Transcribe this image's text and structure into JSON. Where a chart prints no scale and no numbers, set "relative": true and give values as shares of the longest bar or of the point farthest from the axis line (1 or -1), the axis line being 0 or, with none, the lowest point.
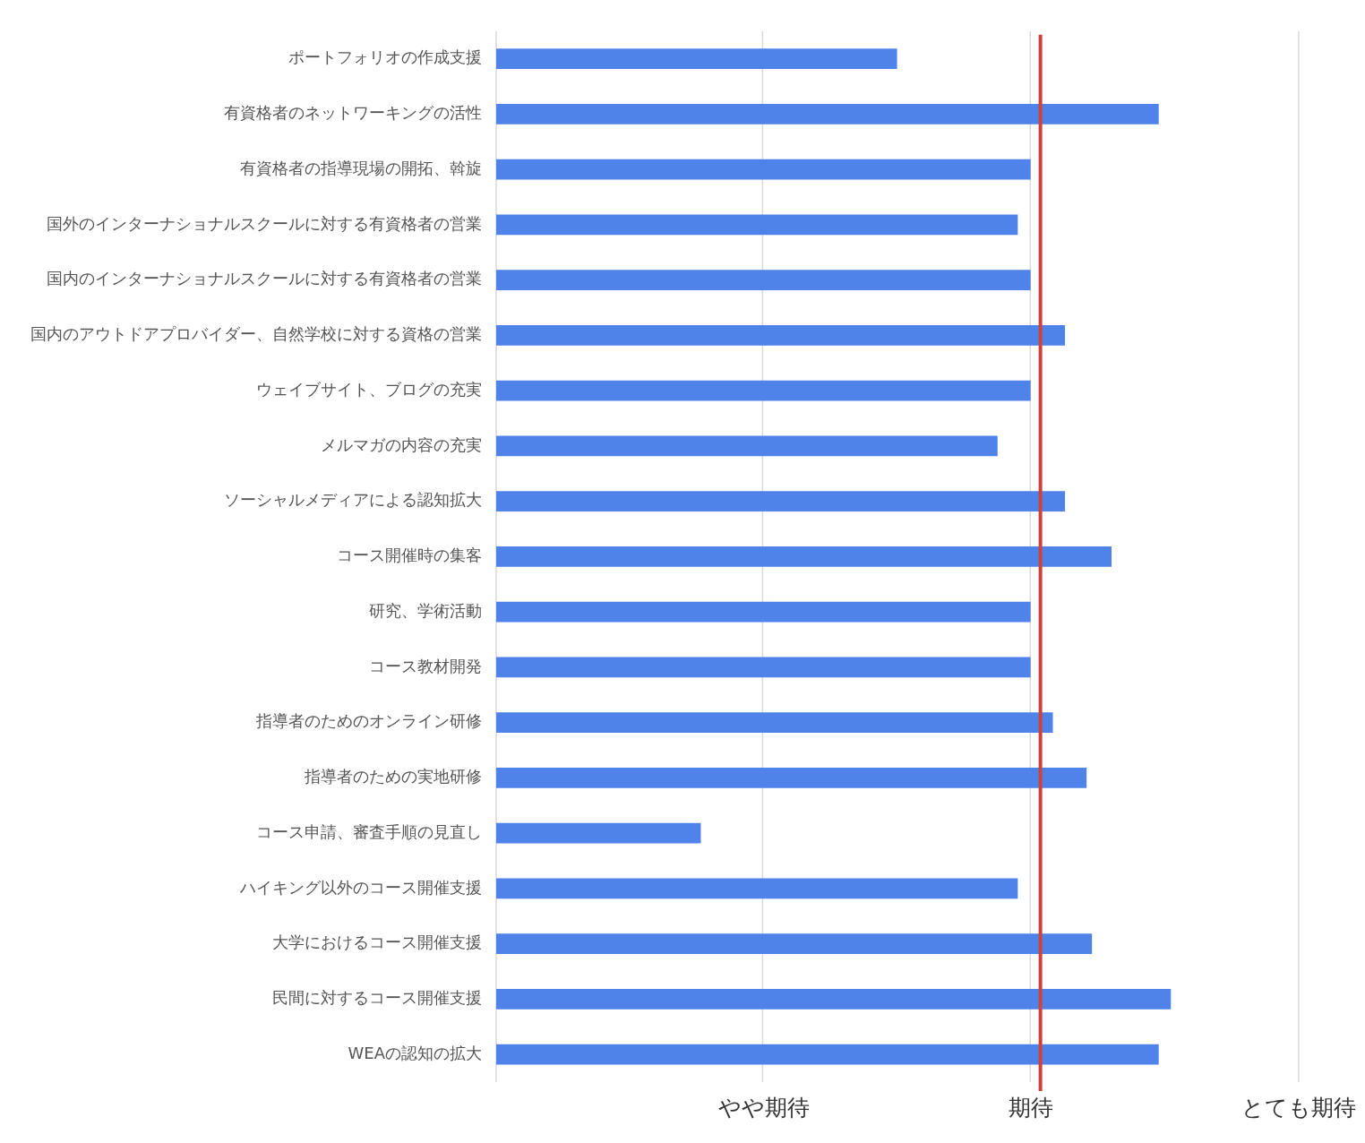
{
  "chart_data": {
    "type": "bar",
    "orientation": "horizontal",
    "relative": true,
    "categories": [
      "ポートフォリオの作成支援",
      "有資格者のネットワーキングの活性",
      "有資格者の指導現場の開拓、斡旋",
      "国外のインターナショナルスクールに対する有資格者の営業",
      "国内のインターナショナルスクールに対する有資格者の営業",
      "国内のアウトドアプロバイダー、自然学校に対する資格の営業",
      "ウェイブサイト、ブログの充実",
      "メルマガの内容の充実",
      "ソーシャルメディアによる認知拡大",
      "コース開催時の集客",
      "研究、学術活動",
      "コース教材開発",
      "指導者のためのオンライン研修",
      "指導者のための実地研修",
      "コース申請、審査手順の見直し",
      "ハイキング以外のコース開催支援",
      "大学におけるコース開催支援",
      "民間に対するコース開催支援",
      "WEAの認知の拡大"
    ],
    "values": [
      0.594,
      0.982,
      0.792,
      0.773,
      0.792,
      0.843,
      0.792,
      0.743,
      0.843,
      0.912,
      0.792,
      0.792,
      0.825,
      0.875,
      0.303,
      0.773,
      0.883,
      1,
      0.982
    ],
    "color": "#5083ea",
    "annotations": [
      "やや期待",
      "期待",
      "とても期待"
    ],
    "legend": false,
    "ref_lines": [
      {
        "axis": "x",
        "value": 0,
        "color": "#d9d9d9"
      },
      {
        "axis": "x",
        "value": 0.395,
        "color": "#d9d9d9"
      },
      {
        "axis": "x",
        "value": 0.792,
        "color": "#d9d9d9"
      },
      {
        "axis": "x",
        "value": 1.19,
        "color": "#d9d9d9"
      },
      {
        "axis": "x",
        "value": 0.807,
        "color": "#d0413a"
      }
    ]
  }
}
